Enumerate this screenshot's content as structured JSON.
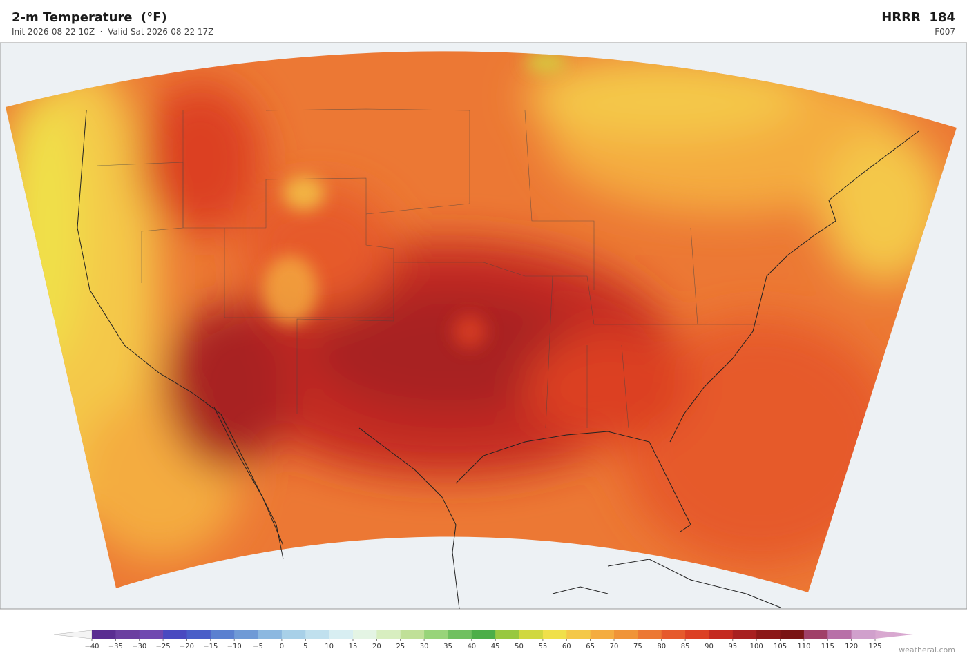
{
  "header": {
    "title": "2-m Temperature  (°F)",
    "subtitle": "Init 2026-08-22 10Z  ·  Valid Sat 2026-08-22 17Z",
    "model": "HRRR  184",
    "forecast_hour": "F007"
  },
  "colorbar": {
    "ticks": [
      {
        "value": -40,
        "label": "−40"
      },
      {
        "value": -35,
        "label": "−35"
      },
      {
        "value": -30,
        "label": "−30"
      },
      {
        "value": -25,
        "label": "−25"
      },
      {
        "value": -20,
        "label": "−20"
      },
      {
        "value": -15,
        "label": "−15"
      },
      {
        "value": -10,
        "label": "−10"
      },
      {
        "value": -5,
        "label": "−5"
      },
      0,
      5,
      10,
      15,
      20,
      25,
      30,
      35,
      40,
      45,
      50,
      55,
      60,
      65,
      70,
      75,
      80,
      85,
      90,
      95,
      100,
      105,
      110,
      115,
      120,
      125
    ],
    "colors": [
      "#5a2d91",
      "#6b3fa0",
      "#7048b0",
      "#4a4ac0",
      "#4a5ec8",
      "#5a80d0",
      "#6f9ad6",
      "#8cb8e0",
      "#a8d0e8",
      "#c0e0ee",
      "#d8eef2",
      "#e4f4e4",
      "#d8eec0",
      "#c0e098",
      "#98d47a",
      "#70c060",
      "#4cae48",
      "#98c840",
      "#d0d840",
      "#f0e04a",
      "#f4c848",
      "#f4ac40",
      "#f09438",
      "#ec7834",
      "#e65a2c",
      "#dc4024",
      "#c42a20",
      "#a82020",
      "#8c1818",
      "#7a1414",
      "#a04068",
      "#b870a8",
      "#d0a0cc"
    ],
    "under_color": "#f4f4f4",
    "over_color": "#d8a8d0"
  },
  "footer": {
    "credit": "weatherai.com"
  }
}
